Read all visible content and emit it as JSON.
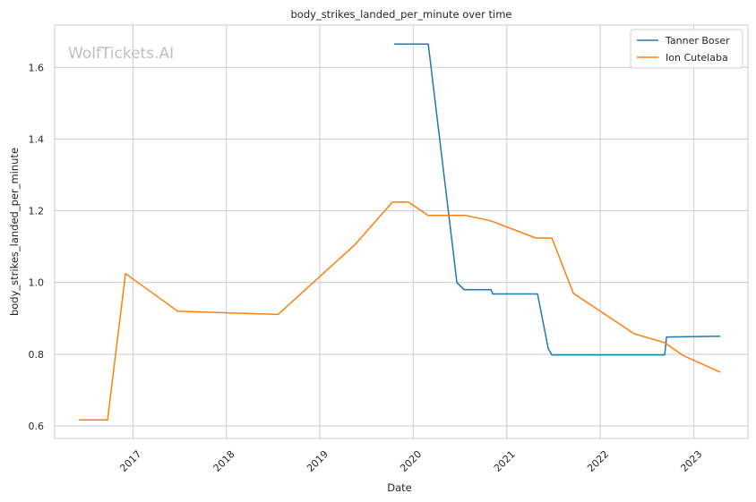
{
  "chart_data": {
    "type": "line",
    "title": "body_strikes_landed_per_minute over time",
    "xlabel": "Date",
    "ylabel": "body_strikes_landed_per_minute",
    "watermark": "WolfTickets.AI",
    "x_ticks": [
      "2017",
      "2018",
      "2019",
      "2020",
      "2021",
      "2022",
      "2023"
    ],
    "y_ticks": [
      "0.6",
      "0.8",
      "1.0",
      "1.2",
      "1.4",
      "1.6"
    ],
    "xlim": [
      "2016-03-01",
      "2023-08-01"
    ],
    "ylim": [
      0.565,
      1.718
    ],
    "grid": true,
    "legend_position": "top-right",
    "series": [
      {
        "name": "Tanner Boser",
        "color": "#1f77b4",
        "points": [
          [
            "2019-10-19",
            1.665
          ],
          [
            "2020-02-29",
            1.665
          ],
          [
            "2020-06-20",
            1.0
          ],
          [
            "2020-07-18",
            0.98
          ],
          [
            "2020-10-31",
            0.98
          ],
          [
            "2020-11-07",
            0.968
          ],
          [
            "2021-05-01",
            0.968
          ],
          [
            "2021-06-12",
            0.815
          ],
          [
            "2021-06-26",
            0.798
          ],
          [
            "2022-09-10",
            0.798
          ],
          [
            "2022-09-17",
            0.848
          ],
          [
            "2023-04-15",
            0.85
          ]
        ]
      },
      {
        "name": "Ion Cutelaba",
        "color": "#ff7f0e",
        "points": [
          [
            "2016-06-04",
            0.617
          ],
          [
            "2016-09-24",
            0.617
          ],
          [
            "2016-12-03",
            1.025
          ],
          [
            "2017-06-25",
            0.92
          ],
          [
            "2018-07-22",
            0.911
          ],
          [
            "2019-05-18",
            1.105
          ],
          [
            "2019-10-12",
            1.224
          ],
          [
            "2019-12-14",
            1.224
          ],
          [
            "2020-02-29",
            1.187
          ],
          [
            "2020-07-25",
            1.187
          ],
          [
            "2020-10-31",
            1.172
          ],
          [
            "2021-04-24",
            1.124
          ],
          [
            "2021-06-26",
            1.124
          ],
          [
            "2021-09-18",
            0.97
          ],
          [
            "2022-05-14",
            0.857
          ],
          [
            "2022-09-10",
            0.832
          ],
          [
            "2022-11-19",
            0.797
          ],
          [
            "2023-04-15",
            0.75
          ]
        ]
      }
    ]
  }
}
